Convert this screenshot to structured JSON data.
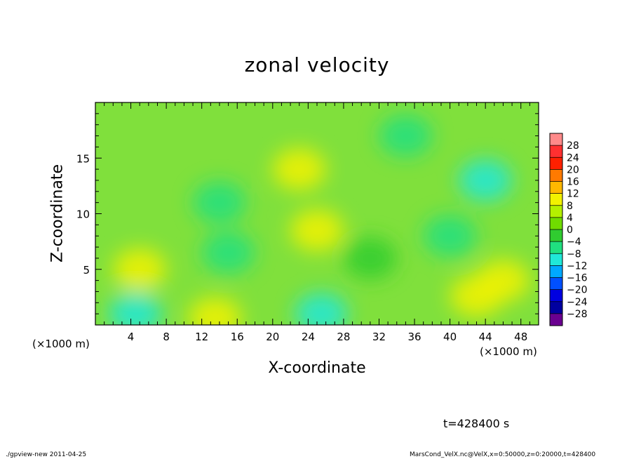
{
  "title": "zonal velocity",
  "footer": {
    "program": "./gpview-new   2011-04-25",
    "source": "MarsCond_VelX.nc@VelX,x=0:50000,z=0:20000,t=428400"
  },
  "time_label": "t=428400 s",
  "chart_data": {
    "type": "heatmap",
    "title": "zonal velocity",
    "xlabel": "X-coordinate",
    "ylabel": "Z-coordinate",
    "x_unit_label": "(×1000 m)",
    "xlim": [
      0,
      50
    ],
    "ylim": [
      0,
      20
    ],
    "x_ticks": [
      4,
      8,
      12,
      16,
      20,
      24,
      28,
      32,
      36,
      40,
      44,
      48
    ],
    "y_ticks": [
      5,
      10,
      15
    ],
    "colorbar": {
      "levels": [
        28,
        24,
        20,
        16,
        12,
        8,
        4,
        0,
        -4,
        -8,
        -12,
        -16,
        -20,
        -24,
        -28
      ],
      "colors": [
        "#ff8a8a",
        "#ff3030",
        "#ff2000",
        "#ff7a00",
        "#ffb800",
        "#f2f200",
        "#b4f000",
        "#70dc00",
        "#30cc30",
        "#20e080",
        "#20e8d8",
        "#00a8ff",
        "#0050ff",
        "#0000e0",
        "#0000a0",
        "#6a0090"
      ]
    },
    "grid": false,
    "features": [
      {
        "x": 13.5,
        "z": 0.6,
        "value": 11
      },
      {
        "x": 5,
        "z": 5,
        "value": 8
      },
      {
        "x": 23,
        "z": 14,
        "value": 9
      },
      {
        "x": 25,
        "z": 8.5,
        "value": 11
      },
      {
        "x": 43,
        "z": 2.6,
        "value": 11
      },
      {
        "x": 46,
        "z": 4,
        "value": 8
      },
      {
        "x": 25.5,
        "z": 1,
        "value": -11
      },
      {
        "x": 4.5,
        "z": 1,
        "value": -10
      },
      {
        "x": 15,
        "z": 6.5,
        "value": -8
      },
      {
        "x": 44,
        "z": 13,
        "value": -9
      },
      {
        "x": 40,
        "z": 8,
        "value": -6
      },
      {
        "x": 35,
        "z": 17,
        "value": -5
      },
      {
        "x": 14,
        "z": 11,
        "value": -5
      },
      {
        "x": 31,
        "z": 6,
        "value": -3
      }
    ]
  }
}
